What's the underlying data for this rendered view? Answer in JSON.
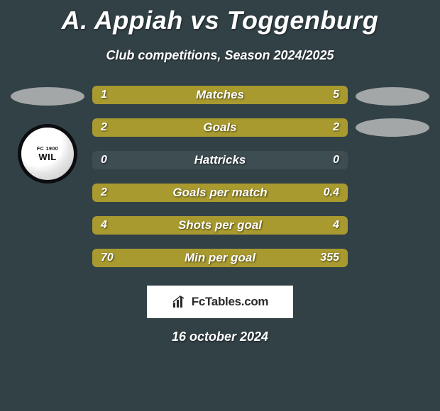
{
  "title": "A. Appiah vs Toggenburg",
  "subtitle": "Club competitions, Season 2024/2025",
  "date": "16 october 2024",
  "footer_brand": "FcTables.com",
  "colors": {
    "background": "#324146",
    "bar_left": "#a89a2e",
    "bar_right": "#a89a2e",
    "bar_track": "#3d4d52",
    "placeholder": "#a3a7a7",
    "text": "#ffffff"
  },
  "club_badge": {
    "top_text": "FC 1900",
    "bottom_text": "WIL"
  },
  "stats": [
    {
      "label": "Matches",
      "left_val": "1",
      "right_val": "5",
      "left_pct": 16.7,
      "right_pct": 83.3
    },
    {
      "label": "Goals",
      "left_val": "2",
      "right_val": "2",
      "left_pct": 50.0,
      "right_pct": 50.0
    },
    {
      "label": "Hattricks",
      "left_val": "0",
      "right_val": "0",
      "left_pct": 0.0,
      "right_pct": 0.0
    },
    {
      "label": "Goals per match",
      "left_val": "2",
      "right_val": "0.4",
      "left_pct": 83.3,
      "right_pct": 16.7
    },
    {
      "label": "Shots per goal",
      "left_val": "4",
      "right_val": "4",
      "left_pct": 50.0,
      "right_pct": 50.0
    },
    {
      "label": "Min per goal",
      "left_val": "70",
      "right_val": "355",
      "left_pct": 16.5,
      "right_pct": 83.5
    }
  ]
}
